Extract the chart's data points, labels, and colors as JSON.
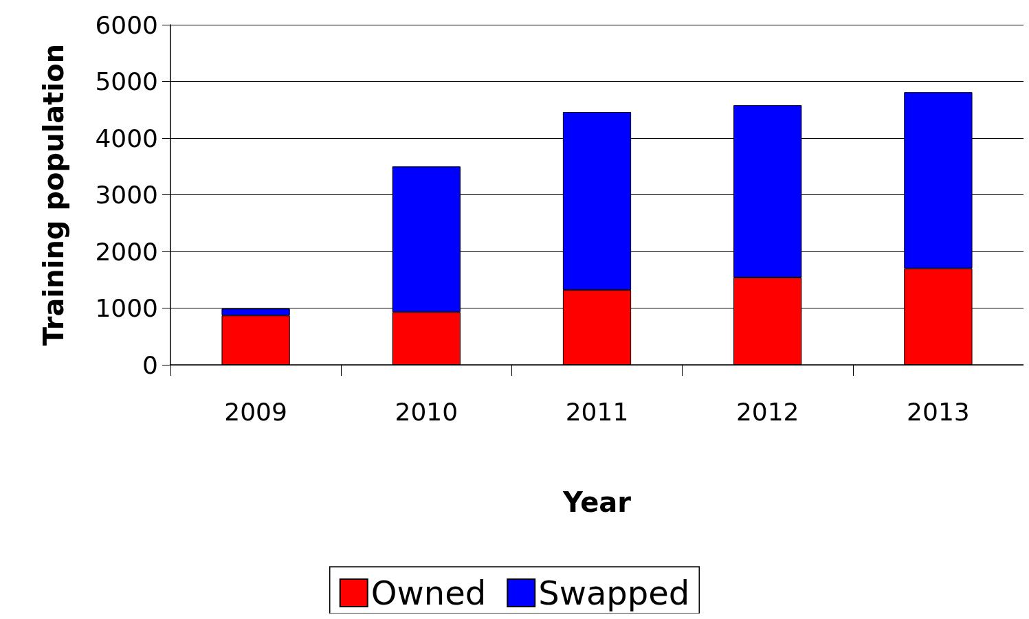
{
  "chart_data": {
    "type": "bar",
    "stacked": true,
    "xlabel": "Year",
    "ylabel": "Training population",
    "categories": [
      "2009",
      "2010",
      "2011",
      "2012",
      "2013"
    ],
    "series": [
      {
        "name": "Owned",
        "color": "#ff0000",
        "values": [
          870,
          930,
          1320,
          1540,
          1700
        ]
      },
      {
        "name": "Swapped",
        "color": "#0000ff",
        "values": [
          120,
          2570,
          3140,
          3040,
          3110
        ]
      }
    ],
    "ylim": [
      0,
      6000
    ],
    "yticks": [
      0,
      1000,
      2000,
      3000,
      4000,
      5000,
      6000
    ],
    "grid": "y",
    "legend": "bottom"
  }
}
